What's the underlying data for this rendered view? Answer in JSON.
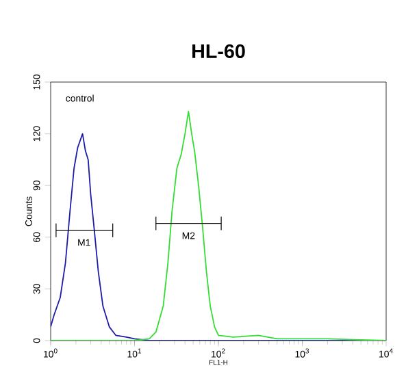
{
  "chart_data": {
    "type": "line",
    "title": "HL-60",
    "xlabel": "FL1-H",
    "ylabel": "Counts",
    "log": "x",
    "xlim": [
      1,
      10000
    ],
    "ylim": [
      0,
      150
    ],
    "xticks": [
      {
        "value": 1,
        "label": "10$^{0}$"
      },
      {
        "value": 10,
        "label": "10$^{1}$"
      },
      {
        "value": 100,
        "label": "10$^{2}$"
      },
      {
        "value": 1000,
        "label": "10$^{3}$"
      },
      {
        "value": 10000,
        "label": "10$^{4}$"
      }
    ],
    "yticks": [
      0,
      30,
      60,
      90,
      120,
      150
    ],
    "grid": false,
    "marker": "none",
    "line_style": "solid",
    "annotations": [
      "control",
      {
        "text": "M1",
        "x": 2.5,
        "y": 64
      },
      {
        "text": "M2",
        "x": 44,
        "y": 68
      }
    ],
    "series": [
      {
        "color": "#1c1ca8",
        "x": [
          1.0,
          1.1,
          1.3,
          1.5,
          1.7,
          1.9,
          2.1,
          2.4,
          2.6,
          2.8,
          3.0,
          3.3,
          3.7,
          4.2,
          5,
          6,
          8,
          10,
          15,
          30,
          100,
          1000,
          10000
        ],
        "values": [
          8,
          15,
          25,
          45,
          75,
          100,
          112,
          120,
          110,
          105,
          85,
          65,
          40,
          20,
          8,
          3,
          2,
          1,
          0,
          0,
          0,
          0,
          0
        ]
      },
      {
        "color": "#33dd33",
        "x": [
          1,
          10,
          15,
          18,
          22,
          25,
          28,
          32,
          36,
          40,
          44,
          48,
          52,
          58,
          65,
          72,
          80,
          90,
          100,
          150,
          300,
          500,
          1000,
          2000,
          10000
        ],
        "values": [
          0,
          0,
          1,
          5,
          20,
          45,
          75,
          100,
          108,
          120,
          133,
          120,
          110,
          90,
          65,
          40,
          20,
          8,
          3,
          2,
          3,
          1,
          1,
          1,
          0
        ]
      },
      {
        "color": "#000000",
        "x": [
          1.16,
          5.5
        ],
        "values": [
          64,
          64
        ]
      },
      {
        "color": "#000000",
        "x": [
          18,
          108
        ],
        "values": [
          68,
          68
        ]
      }
    ]
  }
}
